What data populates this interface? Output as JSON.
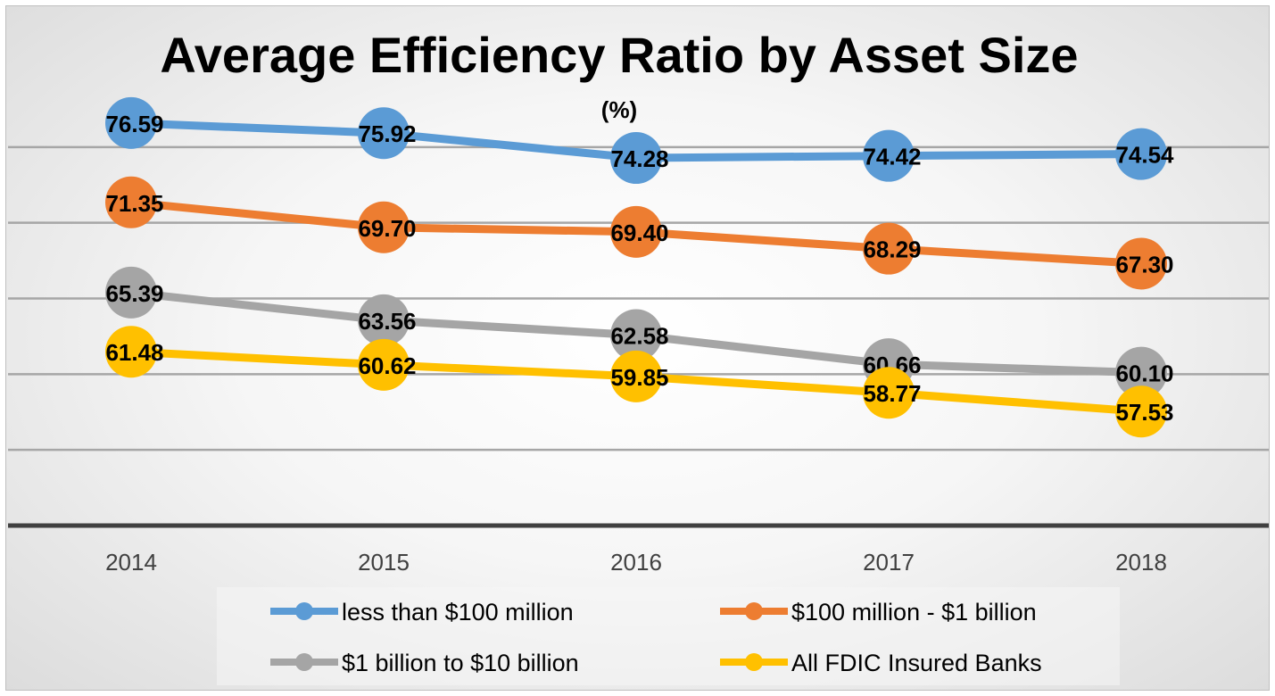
{
  "chart_data": {
    "type": "line",
    "title": "Average Efficiency Ratio by Asset Size",
    "subtitle": "(%)",
    "xlabel": "",
    "ylabel": "",
    "categories": [
      "2014",
      "2015",
      "2016",
      "2017",
      "2018"
    ],
    "ylim": [
      50,
      80
    ],
    "grid": true,
    "legend": "bottom",
    "series": [
      {
        "name": "less than $100 million",
        "color": "#5B9BD5",
        "values": [
          76.59,
          75.92,
          74.28,
          74.42,
          74.54
        ],
        "labels": [
          "76.59",
          "75.92",
          "74.28",
          "74.42",
          "74.54"
        ]
      },
      {
        "name": "$100 million - $1 billion",
        "color": "#ED7D31",
        "values": [
          71.35,
          69.7,
          69.4,
          68.29,
          67.3
        ],
        "labels": [
          "71.35",
          "69.70",
          "69.40",
          "68.29",
          "67.30"
        ]
      },
      {
        "name": "$1 billion to $10 billion",
        "color": "#A5A5A5",
        "values": [
          65.39,
          63.56,
          62.58,
          60.66,
          60.1
        ],
        "labels": [
          "65.39",
          "63.56",
          "62.58",
          "60.66",
          "60.10"
        ]
      },
      {
        "name": "All FDIC Insured Banks",
        "color": "#FFC000",
        "values": [
          61.48,
          60.62,
          59.85,
          58.77,
          57.53
        ],
        "labels": [
          "61.48",
          "60.62",
          "59.85",
          "58.77",
          "57.53"
        ]
      }
    ]
  }
}
